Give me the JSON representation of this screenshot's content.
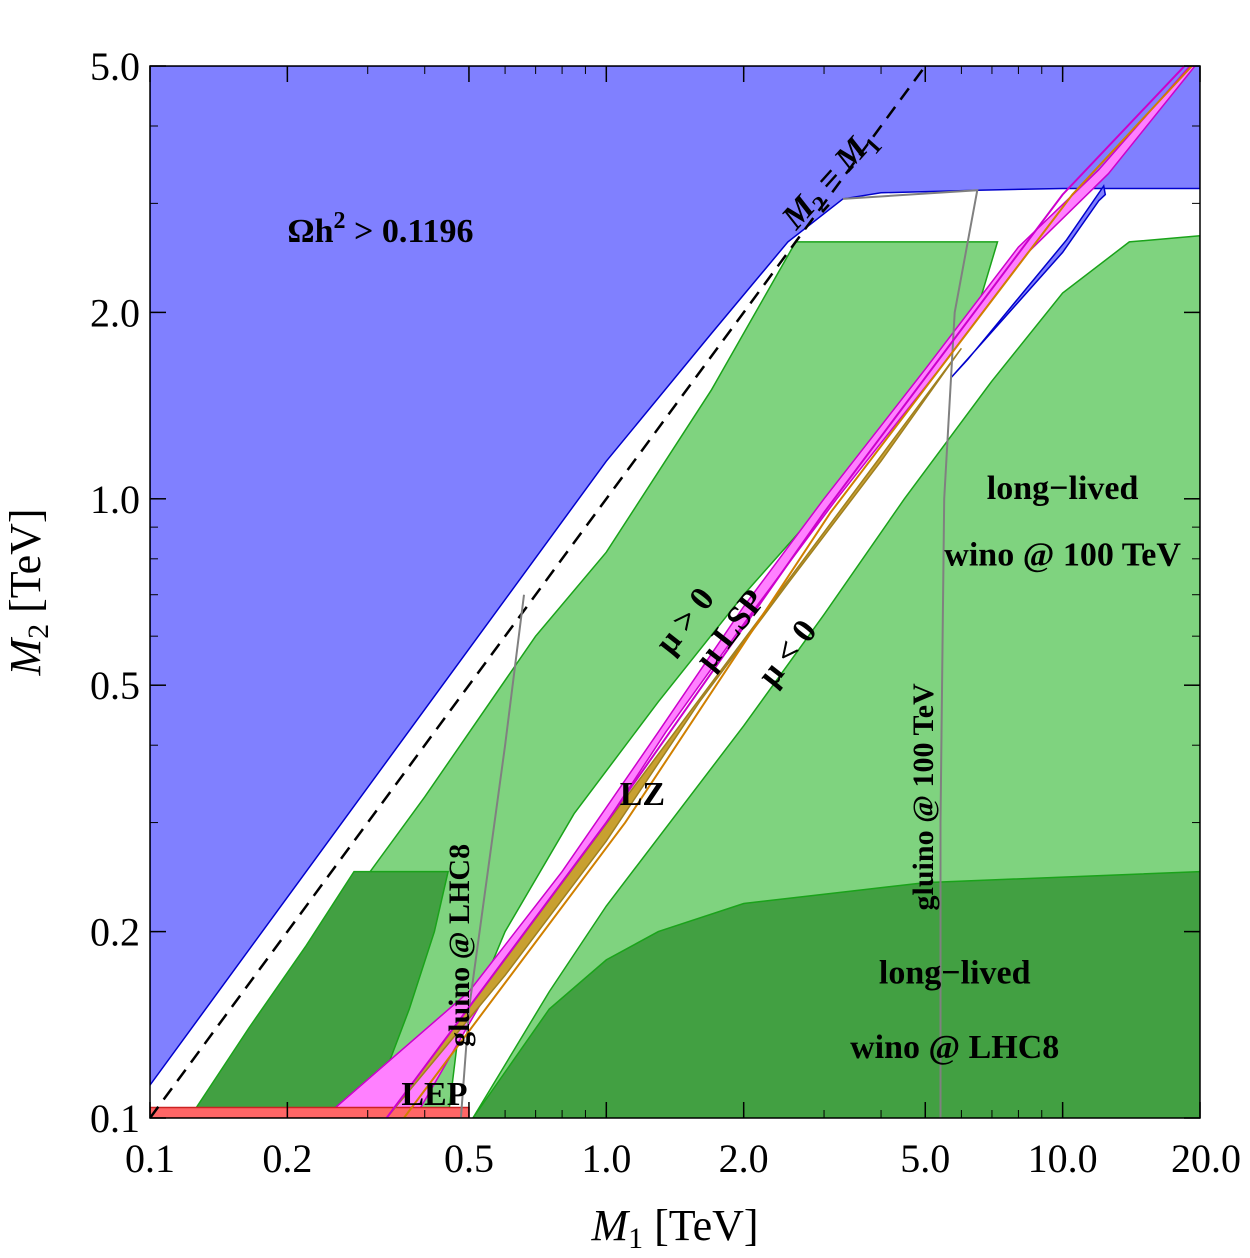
{
  "chart_data": {
    "type": "area",
    "title": "",
    "x_scale": "log",
    "y_scale": "log",
    "xlim": [
      0.1,
      20.0
    ],
    "ylim": [
      0.1,
      5.0
    ],
    "xlabel": "M",
    "xlabel_sub": "1",
    "xlabel_unit": " [TeV]",
    "ylabel": "M",
    "ylabel_sub": "2",
    "ylabel_unit": " [TeV]",
    "x_ticks": [
      {
        "value": 0.1,
        "label": "0.1"
      },
      {
        "value": 0.2,
        "label": "0.2"
      },
      {
        "value": 0.5,
        "label": "0.5"
      },
      {
        "value": 1.0,
        "label": "1.0"
      },
      {
        "value": 2.0,
        "label": "2.0"
      },
      {
        "value": 5.0,
        "label": "5.0"
      },
      {
        "value": 10.0,
        "label": "10.0"
      },
      {
        "value": 20.0,
        "label": "20.0"
      }
    ],
    "y_ticks": [
      {
        "value": 0.1,
        "label": "0.1"
      },
      {
        "value": 0.2,
        "label": "0.2"
      },
      {
        "value": 0.5,
        "label": "0.5"
      },
      {
        "value": 1.0,
        "label": "1.0"
      },
      {
        "value": 2.0,
        "label": "2.0"
      },
      {
        "value": 5.0,
        "label": "5.0"
      }
    ],
    "regions": [
      {
        "name": "relic-overabundance",
        "label": "Ωh² > 0.1196",
        "fill": "#8080ff",
        "stroke": "#0000cc",
        "points": [
          [
            0.1,
            0.113
          ],
          [
            1.0,
            1.15
          ],
          [
            1.7,
            1.85
          ],
          [
            2.5,
            2.6
          ],
          [
            3.3,
            3.05
          ],
          [
            4.0,
            3.12
          ],
          [
            6.5,
            3.15
          ],
          [
            10.0,
            3.17
          ],
          [
            20.0,
            3.17
          ],
          [
            20.0,
            5.0
          ],
          [
            0.1,
            5.0
          ]
        ]
      },
      {
        "name": "relic-overabundance-lower",
        "label": "",
        "fill": "#8080ff",
        "stroke": "#0000cc",
        "points": [
          [
            5.7,
            1.57
          ],
          [
            10.0,
            2.5
          ],
          [
            12.0,
            3.03
          ],
          [
            12.4,
            3.1
          ],
          [
            12.3,
            3.2
          ],
          [
            10.2,
            2.62
          ],
          [
            6.2,
            1.68
          ]
        ]
      },
      {
        "name": "wino-100tev-green",
        "label": "long-lived wino @ 100 TeV",
        "fill": "#7fd37f",
        "stroke": "#1aa31a",
        "points": [
          [
            0.122,
            0.1
          ],
          [
            0.2,
            0.164
          ],
          [
            0.4,
            0.33
          ],
          [
            0.7,
            0.6
          ],
          [
            1.0,
            0.82
          ],
          [
            1.7,
            1.5
          ],
          [
            2.6,
            2.6
          ],
          [
            7.2,
            2.6
          ],
          [
            6.6,
            2.1
          ],
          [
            5.5,
            1.7
          ],
          [
            4.2,
            1.33
          ],
          [
            3.0,
            0.98
          ],
          [
            2.0,
            0.7
          ],
          [
            1.3,
            0.47
          ],
          [
            0.85,
            0.31
          ],
          [
            0.6,
            0.2
          ],
          [
            0.47,
            0.13
          ],
          [
            0.45,
            0.1
          ]
        ]
      },
      {
        "name": "wino-100tev-green-right",
        "label": "",
        "fill": "#7fd37f",
        "stroke": "#1aa31a",
        "points": [
          [
            0.51,
            0.1
          ],
          [
            0.75,
            0.16
          ],
          [
            1.0,
            0.22
          ],
          [
            2.0,
            0.43
          ],
          [
            3.0,
            0.65
          ],
          [
            4.5,
            1.0
          ],
          [
            7.0,
            1.55
          ],
          [
            10.0,
            2.15
          ],
          [
            14.0,
            2.6
          ],
          [
            20.0,
            2.66
          ],
          [
            20.0,
            0.1
          ]
        ]
      },
      {
        "name": "wino-lhc8-dark-left",
        "label": "",
        "fill": "#42a042",
        "stroke": "#1aa31a",
        "points": [
          [
            0.122,
            0.1
          ],
          [
            0.165,
            0.14
          ],
          [
            0.22,
            0.19
          ],
          [
            0.28,
            0.25
          ],
          [
            0.45,
            0.25
          ],
          [
            0.42,
            0.2
          ],
          [
            0.37,
            0.15
          ],
          [
            0.33,
            0.12
          ],
          [
            0.29,
            0.1
          ]
        ]
      },
      {
        "name": "wino-lhc8-dark-right",
        "label": "long-lived wino @ LHC8",
        "fill": "#42a042",
        "stroke": "#1aa31a",
        "points": [
          [
            0.51,
            0.1
          ],
          [
            0.75,
            0.15
          ],
          [
            1.0,
            0.18
          ],
          [
            1.3,
            0.2
          ],
          [
            2.0,
            0.222
          ],
          [
            5.0,
            0.24
          ],
          [
            20.0,
            0.25
          ],
          [
            20.0,
            0.1
          ]
        ]
      },
      {
        "name": "mu-lsp-band",
        "label": "μ LSP",
        "fill": "#ff80ff",
        "stroke": "#cc00cc",
        "points": [
          [
            0.24,
            0.1
          ],
          [
            0.5,
            0.16
          ],
          [
            0.8,
            0.25
          ],
          [
            1.3,
            0.42
          ],
          [
            2.0,
            0.67
          ],
          [
            3.0,
            1.0
          ],
          [
            5.0,
            1.62
          ],
          [
            8.0,
            2.55
          ],
          [
            12.0,
            3.4
          ],
          [
            19.0,
            5.0
          ],
          [
            19.5,
            5.0
          ],
          [
            12.6,
            3.35
          ],
          [
            8.4,
            2.5
          ],
          [
            5.3,
            1.6
          ],
          [
            3.2,
            1.0
          ],
          [
            2.1,
            0.66
          ],
          [
            1.35,
            0.42
          ],
          [
            0.85,
            0.25
          ],
          [
            0.55,
            0.16
          ],
          [
            0.38,
            0.1
          ]
        ]
      },
      {
        "name": "lep-exclusion",
        "label": "LEP",
        "fill": "#ff6666",
        "stroke": "#cc2222",
        "points": [
          [
            0.1,
            0.1
          ],
          [
            0.5,
            0.1
          ],
          [
            0.5,
            0.104
          ],
          [
            0.1,
            0.104
          ]
        ]
      },
      {
        "name": "lz-band",
        "label": "LZ",
        "fill": "#c8a030",
        "stroke": "#a08020",
        "points": [
          [
            0.33,
            0.1
          ],
          [
            0.6,
            0.17
          ],
          [
            1.0,
            0.28
          ],
          [
            1.6,
            0.47
          ],
          [
            2.5,
            0.73
          ],
          [
            4.0,
            1.15
          ],
          [
            6.0,
            1.75
          ]
        ]
      }
    ],
    "lines": [
      {
        "name": "m2-equals-m1",
        "label": "M2 = M1",
        "style": "dashed",
        "color": "#000000",
        "points": [
          [
            0.1,
            0.1
          ],
          [
            5.0,
            5.0
          ]
        ]
      },
      {
        "name": "gluino-lhc8-contour",
        "label": "gluino @ LHC8",
        "style": "solid",
        "color": "#808080",
        "points": [
          [
            0.48,
            0.1
          ],
          [
            0.5,
            0.15
          ],
          [
            0.55,
            0.25
          ],
          [
            0.6,
            0.4
          ],
          [
            0.66,
            0.7
          ]
        ]
      },
      {
        "name": "gluino-100tev-contour",
        "label": "gluino @ 100 TeV",
        "style": "solid",
        "color": "#808080",
        "points": [
          [
            5.4,
            0.1
          ],
          [
            5.4,
            0.3
          ],
          [
            5.5,
            1.0
          ],
          [
            5.8,
            2.0
          ],
          [
            6.5,
            3.15
          ],
          [
            3.3,
            3.05
          ]
        ]
      },
      {
        "name": "mu-positive-edge",
        "label": "μ > 0",
        "style": "solid",
        "color": "#cc00cc",
        "points": [
          [
            0.33,
            0.1
          ],
          [
            1.0,
            0.3
          ],
          [
            3.0,
            0.95
          ],
          [
            10.0,
            3.1
          ],
          [
            18.5,
            5.0
          ]
        ]
      },
      {
        "name": "mu-negative-edge",
        "label": "μ < 0",
        "style": "solid",
        "color": "#d08000",
        "points": [
          [
            0.36,
            0.1
          ],
          [
            1.1,
            0.3
          ],
          [
            3.1,
            0.95
          ],
          [
            10.5,
            3.1
          ],
          [
            19.2,
            5.0
          ]
        ]
      }
    ],
    "annotations": [
      {
        "name": "relic-label",
        "text": "Ωh",
        "sup": "2",
        "rest": " > 0.1196",
        "x": 0.2,
        "y": 2.6
      },
      {
        "name": "m2-m1-label",
        "text": "M",
        "sub1": "2",
        "mid": " = M",
        "sub2": "1",
        "x": 3.2,
        "y": 3.2,
        "rotate": -48
      },
      {
        "name": "lz-label",
        "text": "LZ",
        "x": 1.2,
        "y": 0.32
      },
      {
        "name": "lep-label",
        "text": "LEP",
        "x": 0.42,
        "y": 0.105
      },
      {
        "name": "mu-pos-label",
        "text": "μ > 0",
        "x": 1.55,
        "y": 0.62,
        "rotate": -52
      },
      {
        "name": "mu-lsp-label",
        "text": "μ LSP",
        "x": 1.95,
        "y": 0.6,
        "rotate": -52
      },
      {
        "name": "mu-neg-label",
        "text": "μ < 0",
        "x": 2.6,
        "y": 0.55,
        "rotate": -52
      },
      {
        "name": "gluino-lhc8-label",
        "text": "gluino @ LHC8",
        "x": 0.5,
        "y": 0.19,
        "rotate": -90
      },
      {
        "name": "gluino-100-label",
        "text": "gluino @ 100 TeV",
        "x": 5.2,
        "y": 0.33,
        "rotate": -90
      },
      {
        "name": "wino100-label-1",
        "text": "long−lived",
        "x": 10.0,
        "y": 1.0
      },
      {
        "name": "wino100-label-2",
        "text": "wino @ 100 TeV",
        "x": 10.0,
        "y": 0.78
      },
      {
        "name": "winolhc8-label-1",
        "text": "long−lived",
        "x": 5.8,
        "y": 0.165
      },
      {
        "name": "winolhc8-label-2",
        "text": "wino @ LHC8",
        "x": 5.8,
        "y": 0.125
      }
    ],
    "colors": {
      "axes": "#000000",
      "background": "#ffffff"
    }
  }
}
